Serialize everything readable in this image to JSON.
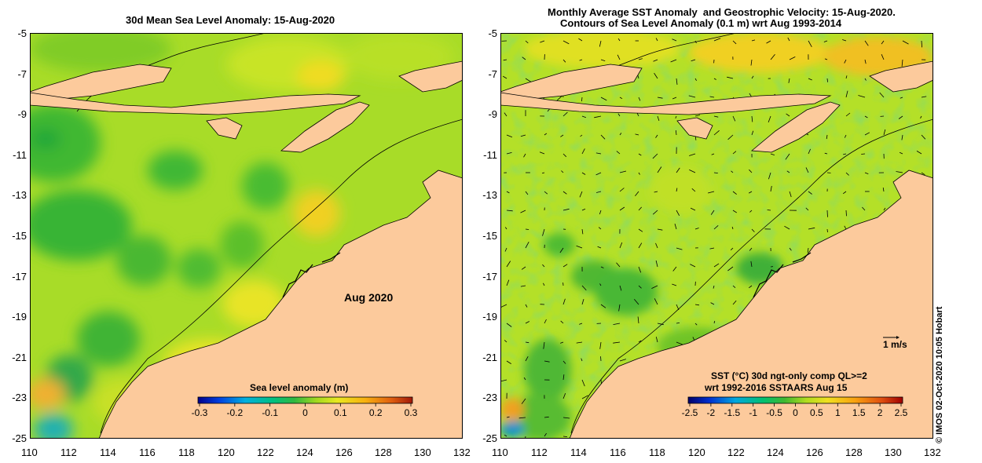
{
  "colors": {
    "land": "#fcca9c",
    "coast": "#000000",
    "sla_ramp": [
      "#00008b",
      "#0020d0",
      "#0078e0",
      "#00b8d8",
      "#00c8a0",
      "#20b840",
      "#50c020",
      "#9ad820",
      "#d8e820",
      "#f8d020",
      "#f0a010",
      "#e06010",
      "#b02008"
    ],
    "sst_ramp": [
      "#00006a",
      "#0018c0",
      "#0070d8",
      "#00b0e0",
      "#00c890",
      "#30b840",
      "#70c820",
      "#b8e020",
      "#f0e020",
      "#f8b010",
      "#f07010",
      "#d83008",
      "#a00000"
    ]
  },
  "left_panel": {
    "title": "30d Mean Sea Level Anomaly: 15-Aug-2020",
    "annotation": "Aug 2020",
    "colorbar": {
      "label": "Sea level anomaly (m)",
      "ticks": [
        "-0.3",
        "-0.2",
        "-0.1",
        "0",
        "0.1",
        "0.2",
        "0.3"
      ]
    }
  },
  "right_panel": {
    "title_line1": "Monthly Average SST Anomaly  and Geostrophic Velocity: 15-Aug-2020.",
    "title_line2": "Contours of Sea Level Anomaly (0.1 m) wrt Aug 1993-2014",
    "velocity_scale": "1 m/s",
    "info_line1": "SST (°C) 30d ngt-only comp QL>=2",
    "info_line2": "wrt 1992-2016 SSTAARS Aug 15",
    "colorbar": {
      "ticks": [
        "-2.5",
        "-2",
        "-1.5",
        "-1",
        "-0.5",
        "0",
        "0.5",
        "1",
        "1.5",
        "2",
        "2.5"
      ]
    }
  },
  "axes": {
    "x_ticks": [
      "110",
      "112",
      "114",
      "116",
      "118",
      "120",
      "122",
      "124",
      "126",
      "128",
      "130",
      "132"
    ],
    "y_ticks": [
      "-5",
      "-7",
      "-9",
      "-11",
      "-13",
      "-15",
      "-17",
      "-19",
      "-21",
      "-23",
      "-25"
    ]
  },
  "credit": "© IMOS 02-Oct-2020 10:05 Hobart"
}
